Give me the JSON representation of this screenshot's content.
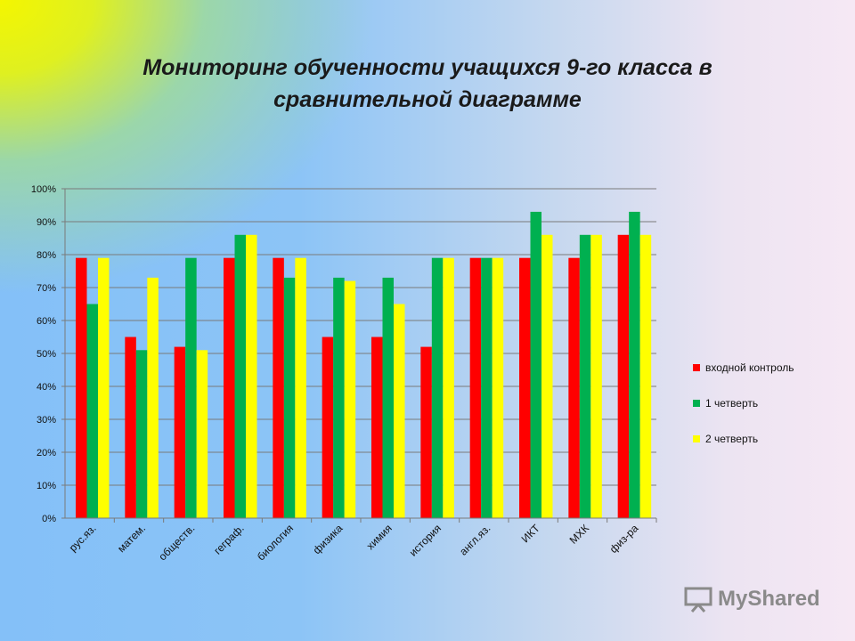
{
  "chart_data": {
    "type": "bar",
    "title": "Мониторинг обученности учащихся 9-го класса в сравнительной диаграмме",
    "title_lines": [
      "Мониторинг обученности учащихся 9-го класса в",
      "сравнительной диаграмме"
    ],
    "categories": [
      "рус.яз.",
      "матем.",
      "обществ.",
      "геграф.",
      "биология",
      "физика",
      "химия",
      "история",
      "англ.яз.",
      "ИКТ",
      "МХК",
      "физ-ра"
    ],
    "series": [
      {
        "name": "входной контроль",
        "color": "#ff0000",
        "values": [
          79,
          55,
          52,
          79,
          79,
          55,
          55,
          52,
          79,
          79,
          79,
          86
        ]
      },
      {
        "name": "1 четверть",
        "color": "#00b050",
        "values": [
          65,
          51,
          79,
          86,
          73,
          73,
          73,
          79,
          79,
          93,
          86,
          93
        ]
      },
      {
        "name": "2 четверть",
        "color": "#ffff00",
        "values": [
          79,
          73,
          51,
          86,
          79,
          72,
          65,
          79,
          79,
          86,
          86,
          86
        ]
      }
    ],
    "ylim": [
      0,
      100
    ],
    "yticks": [
      "0%",
      "10%",
      "20%",
      "30%",
      "40%",
      "50%",
      "60%",
      "70%",
      "80%",
      "90%",
      "100%"
    ],
    "grid": true,
    "legend_position": "right"
  },
  "watermark": "MyShared"
}
